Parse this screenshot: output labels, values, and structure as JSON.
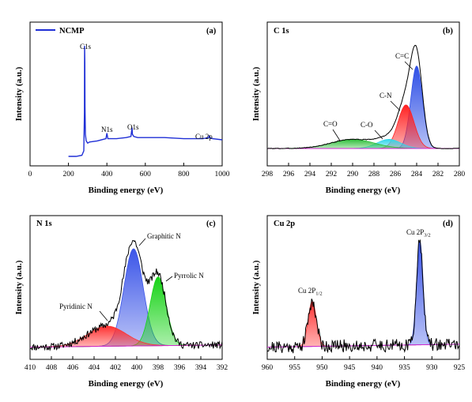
{
  "colors": {
    "survey_line": "#1f2fd6",
    "envelope": "#000000",
    "baseline": "#d02ad0",
    "c1_csc": "#2e4fe6",
    "c1_cn": "#ff2222",
    "c1_co": "#33d6ea",
    "c1_c_o": "#2fbf3a",
    "n_graphitic": "#3b55e8",
    "n_pyrrolic": "#17d317",
    "n_pyridinic": "#ff3030",
    "cu_12": "#ff3030",
    "cu_32": "#3b55e8"
  },
  "chart_data": [
    {
      "id": "a",
      "type": "line",
      "title": "",
      "panel_label": "(a)",
      "xlabel": "Binding energy (eV)",
      "ylabel": "Intensity (a.u.)",
      "xlim": [
        0,
        1000
      ],
      "xticks": [
        "0",
        "200",
        "400",
        "600",
        "800",
        "1000"
      ],
      "legend": {
        "entries": [
          "NCMP"
        ],
        "position": "top-left"
      },
      "series": [
        {
          "name": "NCMP",
          "x": [
            200,
            240,
            270,
            280,
            283,
            284,
            285,
            286,
            288,
            292,
            300,
            310,
            350,
            395,
            400,
            405,
            450,
            500,
            525,
            531,
            533,
            540,
            560,
            600,
            700,
            800,
            900,
            930,
            933,
            936,
            950,
            1000
          ],
          "y": [
            0.0,
            0.0,
            0.01,
            0.05,
            0.4,
            1.0,
            0.85,
            0.45,
            0.2,
            0.14,
            0.12,
            0.13,
            0.14,
            0.16,
            0.21,
            0.16,
            0.16,
            0.17,
            0.18,
            0.26,
            0.2,
            0.18,
            0.17,
            0.17,
            0.17,
            0.16,
            0.16,
            0.17,
            0.19,
            0.17,
            0.16,
            0.15
          ]
        }
      ],
      "annotations": [
        "C1s",
        "N1s",
        "O1s",
        "Cu 2p"
      ]
    },
    {
      "id": "b",
      "type": "area",
      "title": "C 1s",
      "panel_label": "(b)",
      "xlabel": "Binding energy (eV)",
      "ylabel": "Intensity (a.u.)",
      "xlim": [
        298,
        280
      ],
      "xticks": [
        "298",
        "296",
        "294",
        "292",
        "290",
        "288",
        "286",
        "284",
        "282",
        "280"
      ],
      "components": [
        {
          "name": "C=C",
          "center": 284.0,
          "height": 0.72,
          "sigma": 0.55
        },
        {
          "name": "C-N",
          "center": 285.0,
          "height": 0.38,
          "sigma": 0.75
        },
        {
          "name": "C-O",
          "center": 286.6,
          "height": 0.08,
          "sigma": 1.1
        },
        {
          "name": "C=O",
          "center": 290.0,
          "height": 0.08,
          "sigma": 2.0
        }
      ],
      "envelope_peak": {
        "x": 284.1,
        "y": 1.0
      },
      "annotations": [
        "C=C",
        "C-N",
        "C-O",
        "C=O"
      ]
    },
    {
      "id": "c",
      "type": "area",
      "title": "N 1s",
      "panel_label": "(c)",
      "xlabel": "Binding energy (eV)",
      "ylabel": "Intensity (a.u.)",
      "xlim": [
        410,
        392
      ],
      "xticks": [
        "410",
        "408",
        "406",
        "404",
        "402",
        "400",
        "398",
        "396",
        "394",
        "392"
      ],
      "components": [
        {
          "name": "Graphitic N",
          "center": 400.3,
          "height": 0.82,
          "sigma": 0.9
        },
        {
          "name": "Pyrrolic N",
          "center": 398.0,
          "height": 0.58,
          "sigma": 0.75
        },
        {
          "name": "Pyridinic N",
          "center": 402.8,
          "height": 0.17,
          "sigma": 1.8
        }
      ],
      "annotations": [
        "Graphitic N",
        "Pyrrolic N",
        "Pyridinic N"
      ]
    },
    {
      "id": "d",
      "type": "area",
      "title": "Cu 2p",
      "panel_label": "(d)",
      "xlabel": "Binding energy (eV)",
      "ylabel": "Intensity (a.u.)",
      "xlim": [
        960,
        925
      ],
      "xticks": [
        "960",
        "955",
        "950",
        "945",
        "940",
        "935",
        "930",
        "925"
      ],
      "components": [
        {
          "name": "Cu 2P1/2",
          "center": 951.8,
          "height": 0.38,
          "sigma": 0.75
        },
        {
          "name": "Cu 2P3/2",
          "center": 932.2,
          "height": 0.88,
          "sigma": 0.6
        }
      ],
      "annotations": [
        {
          "main": "Cu 2P",
          "sub": "1/2"
        },
        {
          "main": "Cu 2P",
          "sub": "3/2"
        }
      ]
    }
  ]
}
